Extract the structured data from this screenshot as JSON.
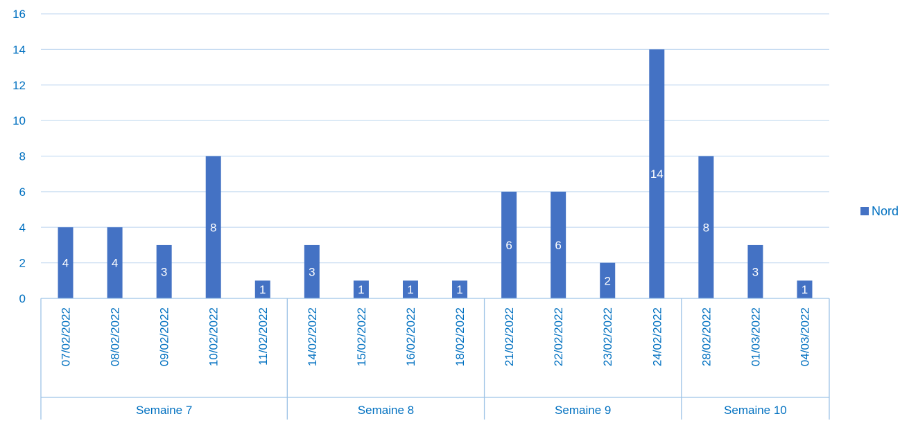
{
  "chart_data": {
    "type": "bar",
    "title": "",
    "xlabel": "",
    "ylabel": "",
    "ylim": [
      0,
      16
    ],
    "yticks": [
      "0",
      "2",
      "4",
      "6",
      "8",
      "10",
      "12",
      "14",
      "16"
    ],
    "grid": true,
    "legend_position": "right",
    "categories": [
      "07/02/2022",
      "08/02/2022",
      "09/02/2022",
      "10/02/2022",
      "11/02/2022",
      "14/02/2022",
      "15/02/2022",
      "16/02/2022",
      "18/02/2022",
      "21/02/2022",
      "22/02/2022",
      "23/02/2022",
      "24/02/2022",
      "28/02/2022",
      "01/03/2022",
      "04/03/2022"
    ],
    "groups": [
      {
        "label": "Semaine 7",
        "count": 5
      },
      {
        "label": "Semaine 8",
        "count": 4
      },
      {
        "label": "Semaine 9",
        "count": 4
      },
      {
        "label": "Semaine 10",
        "count": 3
      }
    ],
    "series": [
      {
        "name": "Nord",
        "color": "#4472c4",
        "values": [
          4,
          4,
          3,
          8,
          1,
          3,
          1,
          1,
          1,
          6,
          6,
          2,
          14,
          8,
          3,
          1
        ],
        "data_labels": [
          "4",
          "4",
          "3",
          "8",
          "1",
          "3",
          "1",
          "1",
          "1",
          "6",
          "6",
          "2",
          "14",
          "8",
          "3",
          "1"
        ]
      }
    ],
    "colors": {
      "axis_text": "#0070c0",
      "grid": "#c9ddf2",
      "axis_line": "#9dc3e6",
      "data_label": "#ffffff"
    }
  }
}
